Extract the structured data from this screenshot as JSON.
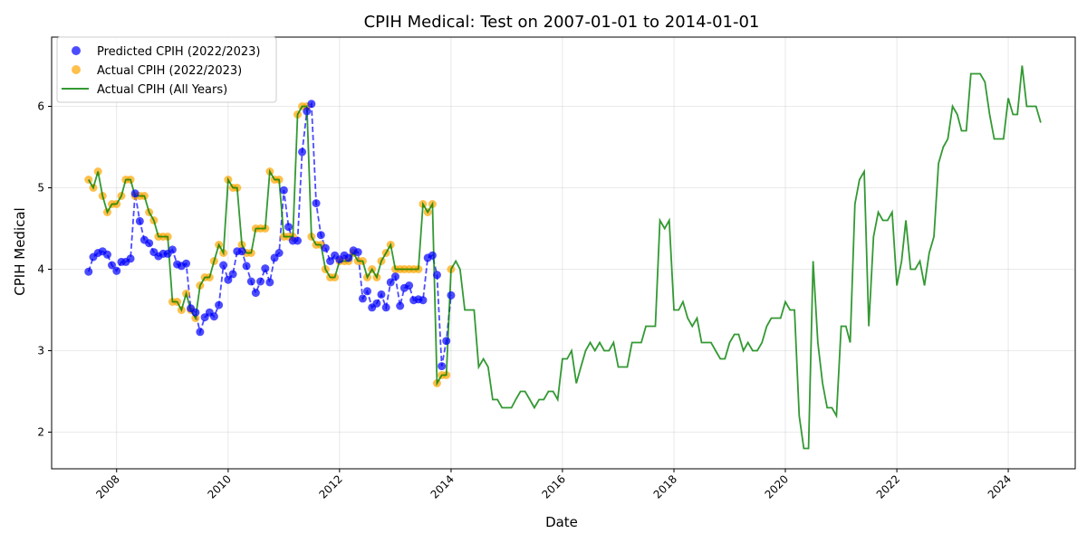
{
  "chart_data": {
    "type": "line",
    "title": "CPIH Medical: Test on 2007-01-01 to 2014-01-01",
    "xlabel": "Date",
    "ylabel": "CPIH Medical",
    "xlim": [
      "2006-11-01",
      "2025-03-15"
    ],
    "ylim": [
      1.55,
      6.85
    ],
    "x_ticks": [
      "2008",
      "2010",
      "2012",
      "2014",
      "2016",
      "2018",
      "2020",
      "2022",
      "2024"
    ],
    "y_ticks": [
      "2",
      "3",
      "4",
      "5",
      "6"
    ],
    "grid": true,
    "legend_position": "top-left",
    "colors": {
      "predicted": "#0000ff",
      "actual_test": "#ffa500",
      "actual_all": "#008000"
    },
    "series": [
      {
        "name": "Predicted CPIH (2022/2023)",
        "kind": "scatter-dashed",
        "start": "2007-07",
        "values": [
          3.97,
          4.15,
          4.2,
          4.22,
          4.18,
          4.05,
          3.98,
          4.09,
          4.09,
          4.13,
          4.93,
          4.59,
          4.36,
          4.32,
          4.21,
          4.16,
          4.19,
          4.19,
          4.24,
          4.06,
          4.04,
          4.07,
          3.52,
          3.47,
          3.23,
          3.41,
          3.47,
          3.42,
          3.56,
          4.05,
          3.87,
          3.94,
          4.22,
          4.22,
          4.04,
          3.85,
          3.71,
          3.85,
          4.01,
          3.84,
          4.14,
          4.2,
          4.97,
          4.52,
          4.35,
          4.35,
          5.44,
          5.94,
          6.03,
          4.81,
          4.42,
          4.26,
          4.1,
          4.17,
          4.12,
          4.17,
          4.14,
          4.23,
          4.21,
          3.64,
          3.73,
          3.53,
          3.58,
          3.69,
          3.53,
          3.84,
          3.91,
          3.55,
          3.77,
          3.8,
          3.62,
          3.63,
          3.62,
          4.14,
          4.17,
          3.93,
          2.81,
          3.12,
          3.68
        ]
      },
      {
        "name": "Actual CPIH (2022/2023)",
        "kind": "scatter",
        "start": "2007-07",
        "values": [
          5.1,
          5.0,
          5.2,
          4.9,
          4.7,
          4.8,
          4.8,
          4.9,
          5.1,
          5.1,
          4.9,
          4.9,
          4.9,
          4.7,
          4.6,
          4.4,
          4.4,
          4.4,
          3.6,
          3.6,
          3.5,
          3.7,
          3.5,
          3.4,
          3.8,
          3.9,
          3.9,
          4.1,
          4.3,
          4.2,
          5.1,
          5.0,
          5.0,
          4.3,
          4.2,
          4.2,
          4.5,
          4.5,
          4.5,
          5.2,
          5.1,
          5.1,
          4.4,
          4.4,
          4.4,
          5.9,
          6.0,
          6.0,
          4.4,
          4.3,
          4.3,
          4.0,
          3.9,
          3.9,
          4.1,
          4.1,
          4.1,
          4.2,
          4.1,
          4.1,
          3.9,
          4.0,
          3.9,
          4.1,
          4.2,
          4.3,
          4.0,
          4.0,
          4.0,
          4.0,
          4.0,
          4.0,
          4.8,
          4.7,
          4.8,
          2.6,
          2.7,
          2.7,
          4.0
        ]
      },
      {
        "name": "Actual CPIH (All Years)",
        "kind": "line",
        "start": "2007-07",
        "values": [
          5.1,
          5.0,
          5.2,
          4.9,
          4.7,
          4.8,
          4.8,
          4.9,
          5.1,
          5.1,
          4.9,
          4.9,
          4.9,
          4.7,
          4.6,
          4.4,
          4.4,
          4.4,
          3.6,
          3.6,
          3.5,
          3.7,
          3.5,
          3.4,
          3.8,
          3.9,
          3.9,
          4.1,
          4.3,
          4.2,
          5.1,
          5.0,
          5.0,
          4.3,
          4.2,
          4.2,
          4.5,
          4.5,
          4.5,
          5.2,
          5.1,
          5.1,
          4.4,
          4.4,
          4.4,
          5.9,
          6.0,
          6.0,
          4.4,
          4.3,
          4.3,
          4.0,
          3.9,
          3.9,
          4.1,
          4.1,
          4.1,
          4.2,
          4.1,
          4.1,
          3.9,
          4.0,
          3.9,
          4.1,
          4.2,
          4.3,
          4.0,
          4.0,
          4.0,
          4.0,
          4.0,
          4.0,
          4.8,
          4.7,
          4.8,
          2.6,
          2.7,
          2.7,
          4.0,
          4.1,
          4.0,
          3.5,
          3.5,
          3.5,
          2.8,
          2.9,
          2.8,
          2.4,
          2.4,
          2.3,
          2.3,
          2.3,
          2.4,
          2.5,
          2.5,
          2.4,
          2.3,
          2.4,
          2.4,
          2.5,
          2.5,
          2.4,
          2.9,
          2.9,
          3.0,
          2.6,
          2.8,
          3.0,
          3.1,
          3.0,
          3.1,
          3.0,
          3.0,
          3.1,
          2.8,
          2.8,
          2.8,
          3.1,
          3.1,
          3.1,
          3.3,
          3.3,
          3.3,
          4.6,
          4.5,
          4.6,
          3.5,
          3.5,
          3.6,
          3.4,
          3.3,
          3.4,
          3.1,
          3.1,
          3.1,
          3.0,
          2.9,
          2.9,
          3.1,
          3.2,
          3.2,
          3.0,
          3.1,
          3.0,
          3.0,
          3.1,
          3.3,
          3.4,
          3.4,
          3.4,
          3.6,
          3.5,
          3.5,
          2.2,
          1.8,
          1.8,
          4.1,
          3.1,
          2.6,
          2.3,
          2.3,
          2.2,
          3.3,
          3.3,
          3.1,
          4.8,
          5.1,
          5.2,
          3.3,
          4.4,
          4.7,
          4.6,
          4.6,
          4.7,
          3.8,
          4.1,
          4.6,
          4.0,
          4.0,
          4.1,
          3.8,
          4.2,
          4.4,
          5.3,
          5.5,
          5.6,
          6.0,
          5.9,
          5.7,
          5.7,
          6.4,
          6.4,
          6.4,
          6.3,
          5.9,
          5.6,
          5.6,
          5.6,
          6.1,
          5.9,
          5.9,
          6.5,
          6.0,
          6.0,
          6.0,
          5.8
        ]
      }
    ]
  }
}
